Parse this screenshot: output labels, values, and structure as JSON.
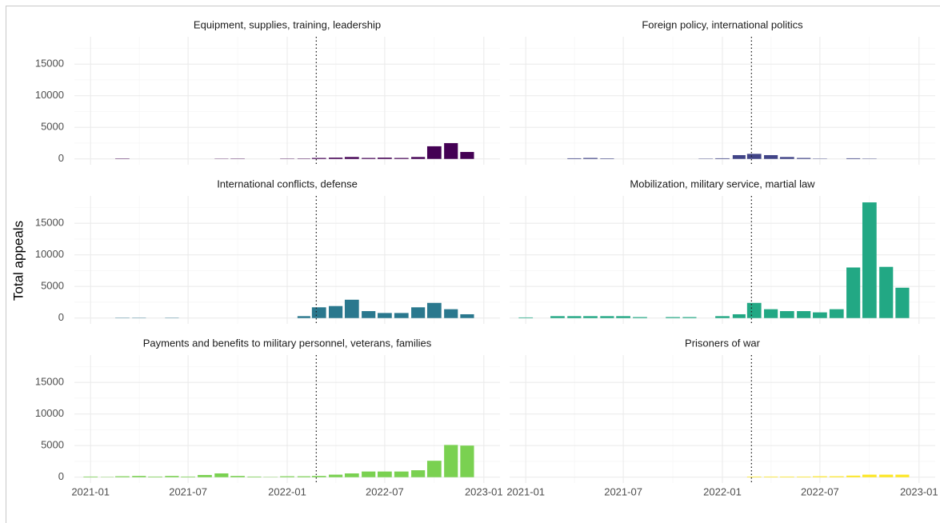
{
  "y_axis_label": "Total appeals",
  "chart_data": [
    {
      "type": "bar",
      "title": "Equipment, supplies, training, leadership",
      "color": "#440154",
      "x": [
        "2021-01",
        "2021-02",
        "2021-03",
        "2021-04",
        "2021-05",
        "2021-06",
        "2021-07",
        "2021-08",
        "2021-09",
        "2021-10",
        "2021-11",
        "2021-12",
        "2022-01",
        "2022-02",
        "2022-03",
        "2022-04",
        "2022-05",
        "2022-06",
        "2022-07",
        "2022-08",
        "2022-09",
        "2022-10",
        "2022-11",
        "2022-12"
      ],
      "values": [
        0,
        0,
        60,
        0,
        0,
        0,
        0,
        0,
        40,
        50,
        0,
        0,
        50,
        60,
        150,
        200,
        300,
        150,
        200,
        150,
        300,
        2000,
        2500,
        1100
      ],
      "xlim": [
        "2020-12-02",
        "2023-01-31"
      ],
      "xticks": [
        "2021-01",
        "2021-07",
        "2022-01",
        "2022-07",
        "2023-01"
      ],
      "ylim": [
        -920,
        19320
      ],
      "yticks": [
        0,
        5000,
        10000,
        15000
      ],
      "vline": "2022-02-24",
      "grid": true
    },
    {
      "type": "bar",
      "title": "Foreign policy, international politics",
      "color": "#414487",
      "x": [
        "2021-01",
        "2021-02",
        "2021-03",
        "2021-04",
        "2021-05",
        "2021-06",
        "2021-07",
        "2021-08",
        "2021-09",
        "2021-10",
        "2021-11",
        "2021-12",
        "2022-01",
        "2022-02",
        "2022-03",
        "2022-04",
        "2022-05",
        "2022-06",
        "2022-07",
        "2022-08",
        "2022-09",
        "2022-10",
        "2022-11",
        "2022-12"
      ],
      "values": [
        0,
        0,
        0,
        100,
        150,
        80,
        0,
        0,
        0,
        0,
        0,
        50,
        100,
        600,
        800,
        600,
        300,
        150,
        50,
        0,
        100,
        50,
        0,
        0
      ],
      "xlim": [
        "2020-12-02",
        "2023-01-31"
      ],
      "xticks": [
        "2021-01",
        "2021-07",
        "2022-01",
        "2022-07",
        "2023-01"
      ],
      "ylim": [
        -920,
        19320
      ],
      "yticks": [
        0,
        5000,
        10000,
        15000
      ],
      "vline": "2022-02-24",
      "grid": true
    },
    {
      "type": "bar",
      "title": "International conflicts, defense",
      "color": "#2a788e",
      "x": [
        "2021-01",
        "2021-02",
        "2021-03",
        "2021-04",
        "2021-05",
        "2021-06",
        "2021-07",
        "2021-08",
        "2021-09",
        "2021-10",
        "2021-11",
        "2021-12",
        "2022-01",
        "2022-02",
        "2022-03",
        "2022-04",
        "2022-05",
        "2022-06",
        "2022-07",
        "2022-08",
        "2022-09",
        "2022-10",
        "2022-11",
        "2022-12"
      ],
      "values": [
        0,
        0,
        50,
        50,
        0,
        50,
        0,
        0,
        0,
        0,
        0,
        0,
        0,
        300,
        1700,
        1900,
        2900,
        1100,
        800,
        800,
        1700,
        2400,
        1400,
        600
      ],
      "xlim": [
        "2020-12-02",
        "2023-01-31"
      ],
      "xticks": [
        "2021-01",
        "2021-07",
        "2022-01",
        "2022-07",
        "2023-01"
      ],
      "ylim": [
        -920,
        19320
      ],
      "yticks": [
        0,
        5000,
        10000,
        15000
      ],
      "vline": "2022-02-24",
      "grid": true
    },
    {
      "type": "bar",
      "title": "Mobilization, military service, martial law",
      "color": "#22a884",
      "x": [
        "2021-01",
        "2021-02",
        "2021-03",
        "2021-04",
        "2021-05",
        "2021-06",
        "2021-07",
        "2021-08",
        "2021-09",
        "2021-10",
        "2021-11",
        "2021-12",
        "2022-01",
        "2022-02",
        "2022-03",
        "2022-04",
        "2022-05",
        "2022-06",
        "2022-07",
        "2022-08",
        "2022-09",
        "2022-10",
        "2022-11",
        "2022-12"
      ],
      "values": [
        100,
        0,
        300,
        300,
        300,
        300,
        300,
        150,
        0,
        150,
        150,
        0,
        300,
        600,
        2400,
        1400,
        1100,
        1100,
        900,
        1400,
        8000,
        18300,
        8100,
        4800
      ],
      "xlim": [
        "2020-12-02",
        "2023-01-31"
      ],
      "xticks": [
        "2021-01",
        "2021-07",
        "2022-01",
        "2022-07",
        "2023-01"
      ],
      "ylim": [
        -920,
        19320
      ],
      "yticks": [
        0,
        5000,
        10000,
        15000
      ],
      "vline": "2022-02-24",
      "grid": true
    },
    {
      "type": "bar",
      "title": "Payments and benefits to military personnel, veterans, families",
      "color": "#7ad151",
      "x": [
        "2021-01",
        "2021-02",
        "2021-03",
        "2021-04",
        "2021-05",
        "2021-06",
        "2021-07",
        "2021-08",
        "2021-09",
        "2021-10",
        "2021-11",
        "2021-12",
        "2022-01",
        "2022-02",
        "2022-03",
        "2022-04",
        "2022-05",
        "2022-06",
        "2022-07",
        "2022-08",
        "2022-09",
        "2022-10",
        "2022-11",
        "2022-12"
      ],
      "values": [
        100,
        50,
        150,
        200,
        100,
        200,
        100,
        350,
        600,
        200,
        100,
        50,
        150,
        150,
        200,
        400,
        600,
        900,
        900,
        900,
        1100,
        2600,
        5100,
        5000
      ],
      "xlim": [
        "2020-12-02",
        "2023-01-31"
      ],
      "xticks": [
        "2021-01",
        "2021-07",
        "2022-01",
        "2022-07",
        "2023-01"
      ],
      "ylim": [
        -920,
        19320
      ],
      "yticks": [
        0,
        5000,
        10000,
        15000
      ],
      "vline": "2022-02-24",
      "grid": true
    },
    {
      "type": "bar",
      "title": "Prisoners of war",
      "color": "#fde725",
      "x": [
        "2021-01",
        "2021-02",
        "2021-03",
        "2021-04",
        "2021-05",
        "2021-06",
        "2021-07",
        "2021-08",
        "2021-09",
        "2021-10",
        "2021-11",
        "2021-12",
        "2022-01",
        "2022-02",
        "2022-03",
        "2022-04",
        "2022-05",
        "2022-06",
        "2022-07",
        "2022-08",
        "2022-09",
        "2022-10",
        "2022-11",
        "2022-12"
      ],
      "values": [
        0,
        0,
        0,
        0,
        0,
        0,
        0,
        0,
        0,
        0,
        0,
        0,
        0,
        0,
        100,
        100,
        100,
        100,
        150,
        150,
        250,
        400,
        400,
        400
      ],
      "xlim": [
        "2020-12-02",
        "2023-01-31"
      ],
      "xticks": [
        "2021-01",
        "2021-07",
        "2022-01",
        "2022-07",
        "2023-01"
      ],
      "ylim": [
        -920,
        19320
      ],
      "yticks": [
        0,
        5000,
        10000,
        15000
      ],
      "vline": "2022-02-24",
      "grid": true
    }
  ]
}
